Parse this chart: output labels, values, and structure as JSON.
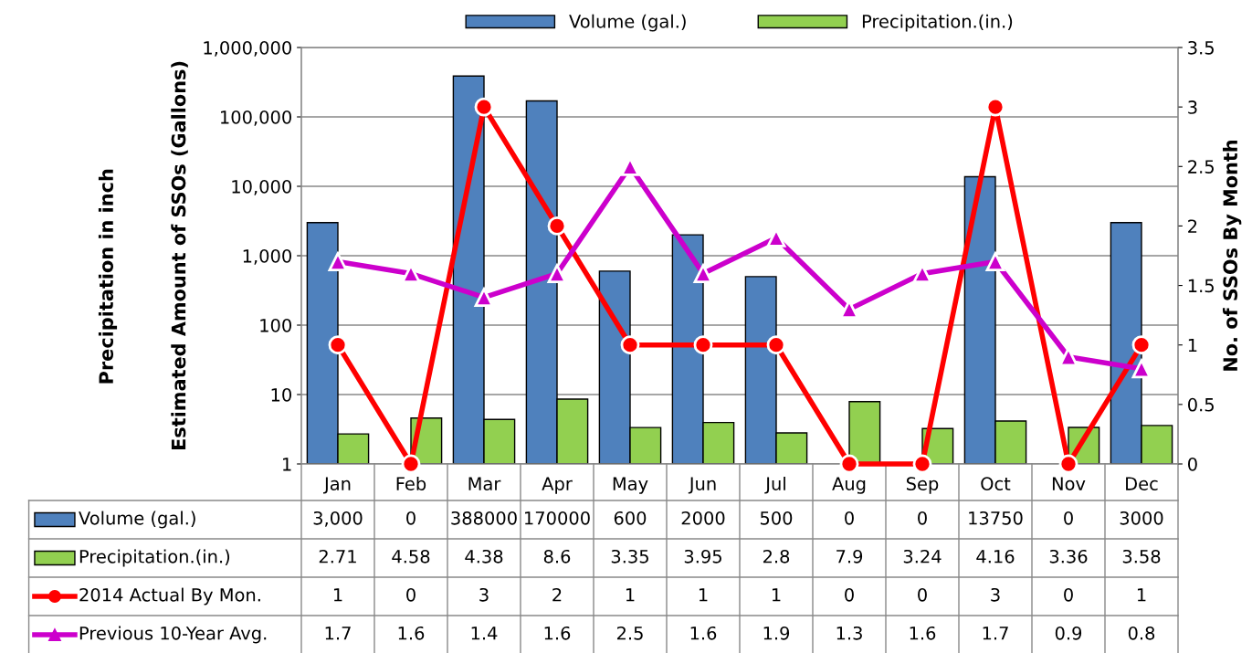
{
  "chart_data": {
    "type": "bar",
    "categories": [
      "Jan",
      "Feb",
      "Mar",
      "Apr",
      "May",
      "Jun",
      "Jul",
      "Aug",
      "Sep",
      "Oct",
      "Nov",
      "Dec"
    ],
    "ylabel": "Estimated Amount of SSOs (Gallons)",
    "y2label": "No. of SSOs By Month",
    "annotations": [
      "Precipitation in inch"
    ],
    "log": "y",
    "ylim": [
      1,
      1000000
    ],
    "yticks": [
      1,
      10,
      100,
      {
        "value": 1000,
        "label": "1,000"
      },
      {
        "value": 10000,
        "label": "10,000"
      },
      {
        "value": 100000,
        "label": "100,000"
      },
      {
        "value": 1000000,
        "label": "1,000,000"
      }
    ],
    "y2lim": [
      0,
      3.5
    ],
    "y2ticks": [
      0,
      0.5,
      1,
      1.5,
      2,
      2.5,
      3,
      3.5
    ],
    "grid": "y",
    "legend": "bottom left",
    "data_labels": true,
    "series": [
      {
        "name": "Volume (gal.)",
        "color": "#4f81bd",
        "values": [
          3000,
          null,
          388000,
          170000,
          600,
          2000,
          500,
          null,
          null,
          13750,
          null,
          3000
        ],
        "value_labels": [
          "3,000",
          "0",
          "388000",
          "170000",
          "600",
          "2000",
          "500",
          "0",
          "0",
          "13750",
          "0",
          "3000"
        ]
      },
      {
        "name": "Precipitation.(in.)",
        "color": "#92d050",
        "values": [
          2.71,
          4.58,
          4.38,
          8.6,
          3.35,
          3.95,
          2.8,
          7.9,
          3.24,
          4.16,
          3.36,
          3.58
        ],
        "value_labels": [
          "2.71",
          "4.58",
          "4.38",
          "8.6",
          "3.35",
          "3.95",
          "2.8",
          "7.9",
          "3.24",
          "4.16",
          "3.36",
          "3.58"
        ]
      },
      {
        "name": "2014 Actual By Mon.",
        "type": "line",
        "axis": "y2",
        "color": "#ff0000",
        "marker": "circle",
        "values": [
          1,
          0,
          3,
          2,
          1,
          1,
          1,
          0,
          0,
          3,
          0,
          1
        ],
        "value_labels": [
          "1",
          "0",
          "3",
          "2",
          "1",
          "1",
          "1",
          "0",
          "0",
          "3",
          "0",
          "1"
        ]
      },
      {
        "name": "Previous 10-Year Avg.",
        "type": "line",
        "axis": "y2",
        "color": "#cc00cc",
        "marker": "triangle",
        "values": [
          1.7,
          1.6,
          1.4,
          1.6,
          2.5,
          1.6,
          1.9,
          1.3,
          1.6,
          1.7,
          0.9,
          0.8
        ],
        "value_labels": [
          "1.7",
          "1.6",
          "1.4",
          "1.6",
          "2.5",
          "1.6",
          "1.9",
          "1.3",
          "1.6",
          "1.7",
          "0.9",
          "0.8"
        ]
      }
    ]
  }
}
